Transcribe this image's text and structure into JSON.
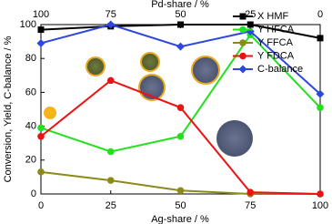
{
  "chart_data": {
    "type": "line",
    "x_label": "Ag-share / %",
    "x2_label": "Pd-share / %",
    "y_label": "Conversion, Yield, C-balance / %",
    "x": [
      0,
      25,
      50,
      75,
      100
    ],
    "xlim": [
      0,
      100
    ],
    "xticks": [
      0,
      25,
      50,
      75,
      100
    ],
    "x2lim": [
      100,
      0
    ],
    "x2ticks": [
      100,
      75,
      50,
      25,
      0
    ],
    "ylim": [
      0,
      100
    ],
    "yticks": [
      0,
      20,
      40,
      60,
      80,
      100
    ],
    "legend": "upper right",
    "series": [
      {
        "name": "X HMF",
        "color": "#000000",
        "marker": "square",
        "values": [
          97,
          99,
          100,
          100,
          92
        ]
      },
      {
        "name": "Y HFCA",
        "color": "#22e01c",
        "marker": "circle",
        "values": [
          39,
          25,
          34,
          94,
          51
        ]
      },
      {
        "name": "Y FFCA",
        "color": "#8b8a1a",
        "marker": "circle",
        "values": [
          13,
          8,
          2,
          0,
          0
        ]
      },
      {
        "name": "Y FDCA",
        "color": "#ee1111",
        "marker": "circle",
        "values": [
          34,
          67,
          51,
          1,
          0
        ]
      },
      {
        "name": "C-balance",
        "color": "#2d46e0",
        "marker": "diamond",
        "values": [
          89,
          100,
          87,
          96,
          59
        ]
      }
    ]
  }
}
